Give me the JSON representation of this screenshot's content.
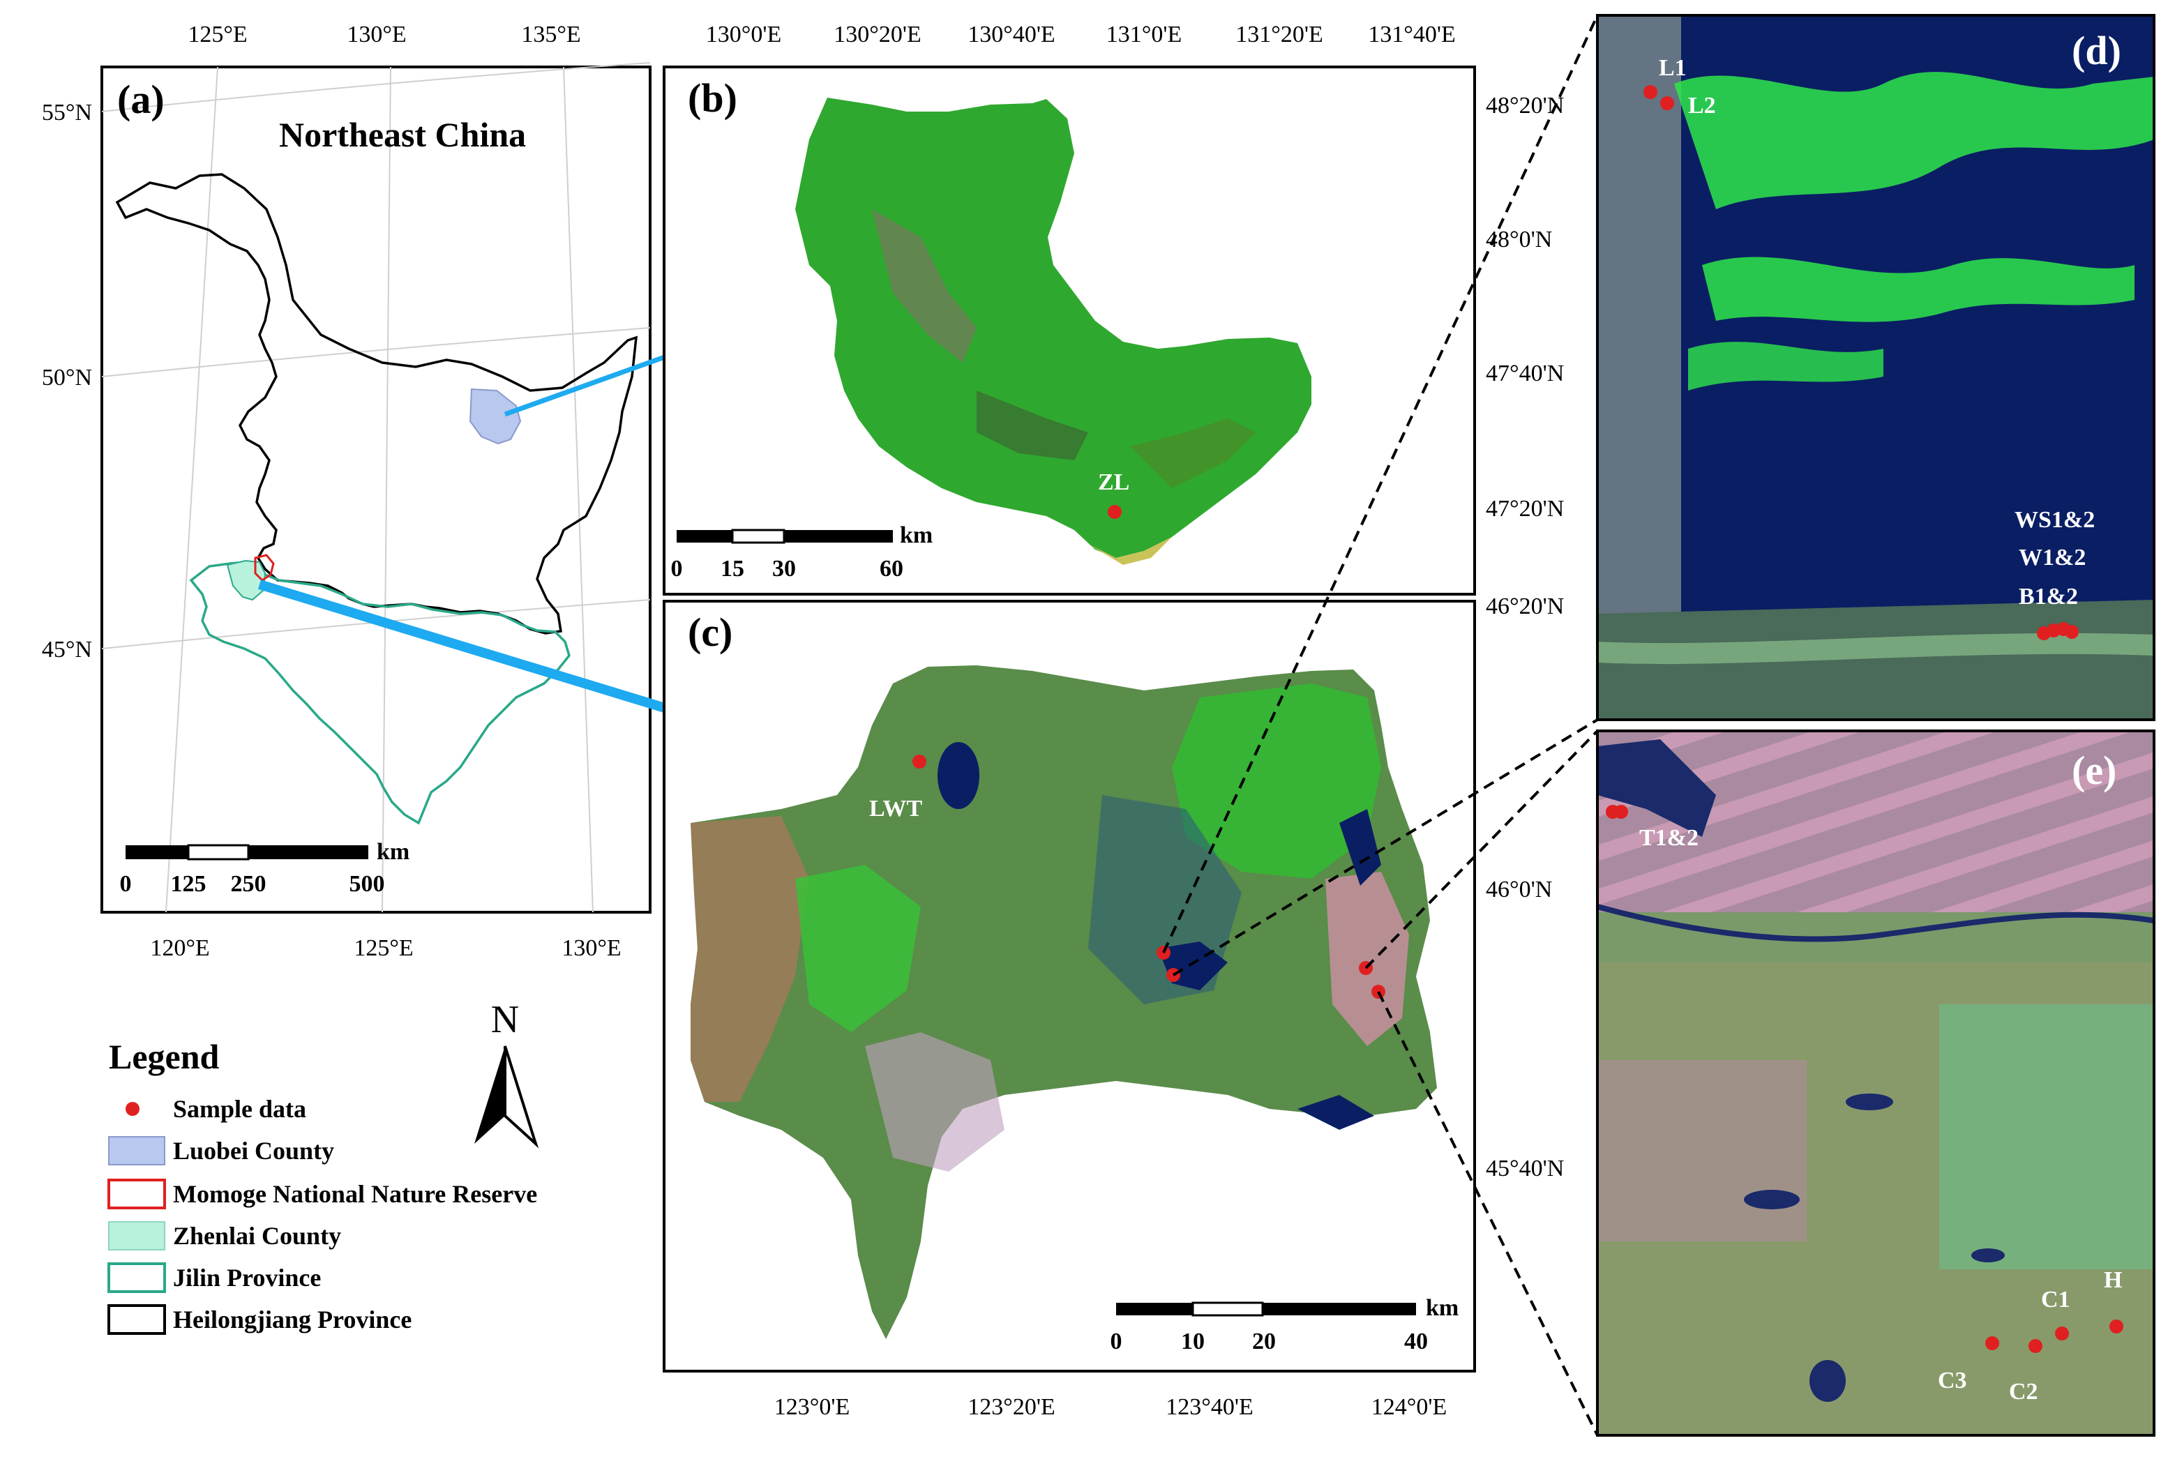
{
  "panels": {
    "a": {
      "letter": "(a)",
      "title": "Northeast China"
    },
    "b": {
      "letter": "(b)"
    },
    "c": {
      "letter": "(c)"
    },
    "d": {
      "letter": "(d)"
    },
    "e": {
      "letter": "(e)"
    }
  },
  "ticks": {
    "a_top": [
      "125°E",
      "130°E",
      "135°E"
    ],
    "a_bottom": [
      "120°E",
      "125°E",
      "130°E"
    ],
    "a_left": [
      "55°N",
      "50°N",
      "45°N"
    ],
    "b_top": [
      "130°0'E",
      "130°20'E",
      "130°40'E",
      "131°0'E",
      "131°20'E",
      "131°40'E"
    ],
    "b_right": [
      "48°20'N",
      "48°0'N",
      "47°40'N",
      "47°20'N"
    ],
    "c_bottom": [
      "123°0'E",
      "123°20'E",
      "123°40'E",
      "124°0'E"
    ],
    "c_right": [
      "46°20'N",
      "46°0'N",
      "45°40'N"
    ]
  },
  "scalebars": {
    "a": {
      "unit": "km",
      "labels": [
        "0",
        "125",
        "250",
        "500"
      ]
    },
    "b": {
      "unit": "km",
      "labels": [
        "0",
        "15",
        "30",
        "60"
      ]
    },
    "c": {
      "unit": "km",
      "labels": [
        "0",
        "10",
        "20",
        "40"
      ]
    }
  },
  "sites": {
    "zl": "ZL",
    "lwt": "LWT",
    "l1": "L1",
    "l2": "L2",
    "ws": "WS1&2",
    "w": "W1&2",
    "b": "B1&2",
    "t": "T1&2",
    "c1": "C1",
    "c2": "C2",
    "c3": "C3",
    "h": "H"
  },
  "north_arrow": "N",
  "legend": {
    "title": "Legend",
    "items": [
      {
        "label": "Sample data",
        "symbol": "dot",
        "color": "#e02020"
      },
      {
        "label": "Luobei County",
        "symbol": "fill",
        "color": "#b8c8ee"
      },
      {
        "label": "Momoge National Nature Reserve",
        "symbol": "outline",
        "color": "#e02020"
      },
      {
        "label": "Zhenlai County",
        "symbol": "fill",
        "color": "#b8f2dc"
      },
      {
        "label": "Jilin Province",
        "symbol": "outline",
        "color": "#2aa88a"
      },
      {
        "label": "Heilongjiang Province",
        "symbol": "outline",
        "color": "#000000"
      }
    ]
  },
  "colors": {
    "sample_point": "#e02020",
    "arrow": "#1eaaf0",
    "vegetation": "#2fa82f",
    "water": "#0a1e64",
    "wetland_pink": "#c890a8"
  }
}
